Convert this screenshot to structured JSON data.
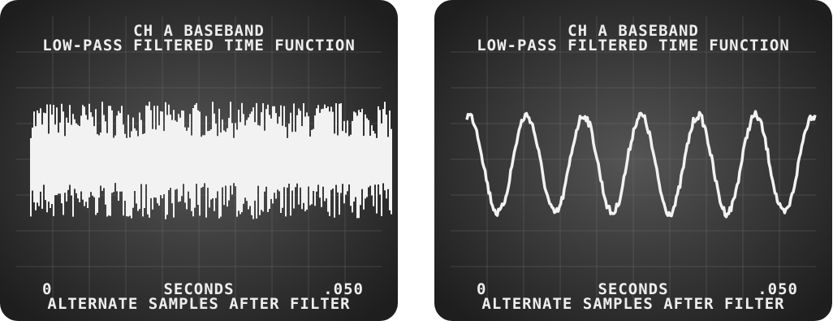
{
  "panels": [
    {
      "title": "CH A BASEBAND",
      "subtitle": "LOW-PASS FILTERED TIME FUNCTION",
      "x_start": "0",
      "x_label": "SECONDS",
      "x_end": ".050",
      "caption": "ALTERNATE SAMPLES AFTER FILTER"
    },
    {
      "title": "CH A BASEBAND",
      "subtitle": "LOW-PASS FILTERED TIME FUNCTION",
      "x_start": "0",
      "x_label": "SECONDS",
      "x_end": ".050",
      "caption": "ALTERNATE SAMPLES AFTER FILTER"
    }
  ]
}
